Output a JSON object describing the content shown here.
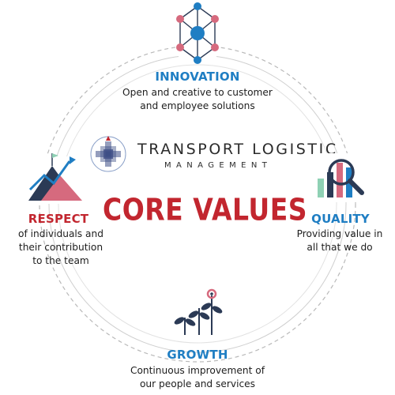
{
  "brand": {
    "line1": "TRANSPORT LOGISTIC",
    "line2": "MANAGEMENT"
  },
  "core_title": "CORE VALUES",
  "colors": {
    "blue": "#1f7ec3",
    "red": "#c2262f",
    "dark": "#2b3a55",
    "pink": "#d66a7e",
    "green": "#8fd1b4"
  },
  "values": {
    "innovation": {
      "title": "INNOVATION",
      "desc": [
        "Open and creative to customer",
        "and employee solutions"
      ],
      "icon": "network-icon"
    },
    "respect": {
      "title": "RESPECT",
      "desc": [
        "of individuals and",
        "their contribution",
        "to the team"
      ],
      "icon": "mountain-flag-icon"
    },
    "quality": {
      "title": "QUALITY",
      "desc": [
        "Providing value in",
        "all that we do"
      ],
      "icon": "magnifier-chart-icon"
    },
    "growth": {
      "title": "GROWTH",
      "desc": [
        "Continuous improvement of",
        "our people and services"
      ],
      "icon": "sprouting-plants-icon"
    }
  }
}
